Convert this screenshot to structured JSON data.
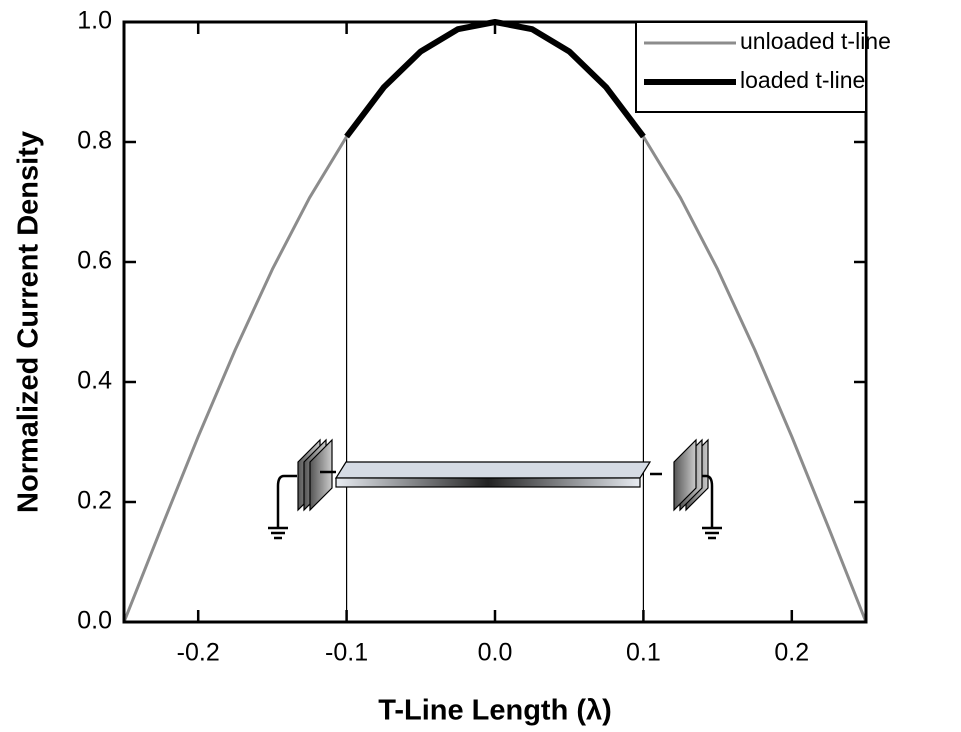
{
  "chart_data": {
    "type": "line",
    "xlabel": "T-Line Length (λ)",
    "ylabel": "Normalized Current Density",
    "xlim": [
      -0.25,
      0.25
    ],
    "ylim": [
      0,
      1
    ],
    "xticks": [
      -0.2,
      -0.1,
      {
        "value": 0,
        "label": "0.0"
      },
      0.1,
      0.2
    ],
    "yticks": [
      {
        "value": 0,
        "label": "0.0"
      },
      0.2,
      0.4,
      0.6,
      0.8,
      {
        "value": 1,
        "label": "1.0"
      }
    ],
    "legend": "upper right",
    "series": [
      {
        "name": "unloaded t-line",
        "color": "#8c8c8c",
        "line_width": 3,
        "x": [
          -0.25,
          -0.225,
          -0.2,
          -0.175,
          -0.15,
          -0.125,
          -0.1,
          -0.075,
          -0.05,
          -0.025,
          0,
          0.025,
          0.05,
          0.075,
          0.1,
          0.125,
          0.15,
          0.175,
          0.2,
          0.225,
          0.25
        ],
        "values": [
          0,
          0.156,
          0.309,
          0.454,
          0.588,
          0.707,
          0.809,
          0.891,
          0.951,
          0.988,
          1,
          0.988,
          0.951,
          0.891,
          0.809,
          0.707,
          0.588,
          0.454,
          0.309,
          0.156,
          0
        ]
      },
      {
        "name": "loaded t-line",
        "color": "#000000",
        "line_width": 6,
        "x": [
          -0.1,
          -0.075,
          -0.05,
          -0.025,
          0,
          0.025,
          0.05,
          0.075,
          0.1
        ],
        "values": [
          0.809,
          0.891,
          0.951,
          0.988,
          1,
          0.988,
          0.951,
          0.891,
          0.809
        ]
      }
    ]
  }
}
